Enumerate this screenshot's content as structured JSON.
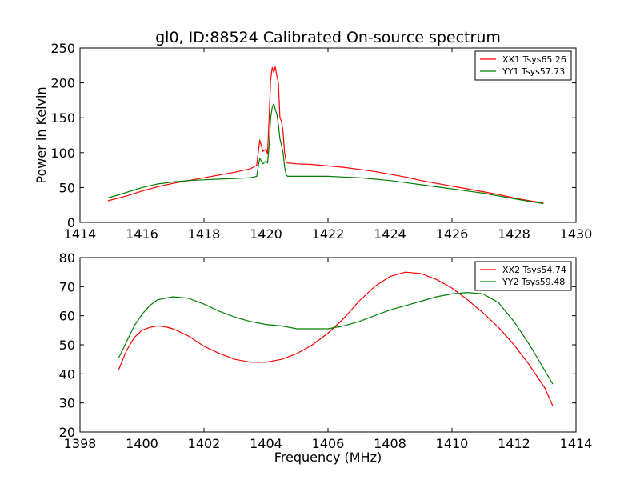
{
  "figure": {
    "title": "gl0, ID:88524 Calibrated On-source spectrum"
  },
  "chart_data": [
    {
      "type": "line",
      "title": "gl0, ID:88524 Calibrated On-source spectrum",
      "xlabel": "",
      "ylabel": "Power in Kelvin",
      "xlim": [
        1414,
        1430
      ],
      "ylim": [
        0,
        250
      ],
      "xticks": [
        "1414",
        "1416",
        "1418",
        "1420",
        "1422",
        "1424",
        "1426",
        "1428",
        "1430"
      ],
      "yticks": [
        "0",
        "50",
        "100",
        "150",
        "200",
        "250"
      ],
      "grid": false,
      "legend_position": "top-right",
      "series": [
        {
          "name": "XX1 Tsys65.26",
          "color": "#ff0000",
          "x": [
            1414.9,
            1415.5,
            1416.0,
            1416.5,
            1417.0,
            1417.5,
            1418.0,
            1418.5,
            1419.0,
            1419.5,
            1419.7,
            1419.75,
            1419.8,
            1419.9,
            1420.0,
            1420.05,
            1420.1,
            1420.15,
            1420.2,
            1420.25,
            1420.3,
            1420.35,
            1420.4,
            1420.45,
            1420.5,
            1420.55,
            1420.6,
            1420.65,
            1420.7,
            1420.75,
            1421.0,
            1421.5,
            1422.0,
            1422.5,
            1423.0,
            1423.5,
            1424.0,
            1424.5,
            1425.0,
            1425.5,
            1426.0,
            1426.5,
            1427.0,
            1427.5,
            1428.0,
            1428.5,
            1428.95
          ],
          "y": [
            31,
            38,
            45,
            51,
            56,
            60,
            64,
            68,
            72,
            77,
            82,
            100,
            118,
            102,
            105,
            98,
            150,
            205,
            222,
            215,
            223,
            210,
            200,
            150,
            145,
            130,
            100,
            87,
            85,
            85,
            84,
            83,
            81,
            79,
            76,
            73,
            69,
            65,
            60,
            56,
            52,
            48,
            44,
            40,
            35,
            31,
            28
          ]
        },
        {
          "name": "YY1 Tsys57.73",
          "color": "#008000",
          "x": [
            1414.9,
            1415.5,
            1416.0,
            1416.5,
            1417.0,
            1417.5,
            1418.0,
            1418.5,
            1419.0,
            1419.5,
            1419.7,
            1419.75,
            1419.8,
            1419.9,
            1420.0,
            1420.05,
            1420.1,
            1420.15,
            1420.2,
            1420.25,
            1420.3,
            1420.35,
            1420.4,
            1420.45,
            1420.5,
            1420.55,
            1420.6,
            1420.65,
            1420.7,
            1420.75,
            1421.0,
            1421.5,
            1422.0,
            1422.5,
            1423.0,
            1423.5,
            1424.0,
            1424.5,
            1425.0,
            1425.5,
            1426.0,
            1426.5,
            1427.0,
            1427.5,
            1428.0,
            1428.5,
            1428.95
          ],
          "y": [
            35,
            43,
            50,
            55,
            58,
            60,
            61,
            62,
            63,
            64,
            66,
            80,
            92,
            84,
            88,
            85,
            110,
            150,
            165,
            170,
            162,
            155,
            140,
            120,
            110,
            100,
            80,
            68,
            66,
            66,
            66,
            66,
            66,
            65,
            64,
            62,
            60,
            57,
            54,
            51,
            48,
            45,
            42,
            38,
            34,
            30,
            27
          ]
        }
      ]
    },
    {
      "type": "line",
      "title": "",
      "xlabel": "Frequency (MHz)",
      "ylabel": "",
      "xlim": [
        1398,
        1414
      ],
      "ylim": [
        20,
        80
      ],
      "xticks": [
        "1398",
        "1400",
        "1402",
        "1404",
        "1406",
        "1408",
        "1410",
        "1412",
        "1414"
      ],
      "yticks": [
        "20",
        "30",
        "40",
        "50",
        "60",
        "70",
        "80"
      ],
      "grid": false,
      "legend_position": "top-right",
      "series": [
        {
          "name": "XX2 Tsys54.74",
          "color": "#ff0000",
          "x": [
            1399.25,
            1399.5,
            1399.75,
            1400.0,
            1400.25,
            1400.5,
            1400.75,
            1401.0,
            1401.5,
            1402.0,
            1402.5,
            1403.0,
            1403.5,
            1404.0,
            1404.5,
            1405.0,
            1405.5,
            1406.0,
            1406.5,
            1407.0,
            1407.5,
            1408.0,
            1408.5,
            1409.0,
            1409.5,
            1410.0,
            1410.5,
            1411.0,
            1411.5,
            1412.0,
            1412.5,
            1413.0,
            1413.25
          ],
          "y": [
            41.5,
            48,
            52.5,
            55,
            56,
            56.5,
            56.2,
            55.5,
            53,
            49.5,
            47,
            45,
            44,
            44,
            45,
            47,
            50,
            54,
            59,
            65,
            70,
            73.5,
            75,
            74.5,
            72.5,
            69.5,
            65.5,
            61,
            56,
            50,
            43,
            35,
            29
          ]
        },
        {
          "name": "YY2 Tsys59.48",
          "color": "#008000",
          "x": [
            1399.25,
            1399.5,
            1399.75,
            1400.0,
            1400.25,
            1400.5,
            1400.75,
            1401.0,
            1401.5,
            1402.0,
            1402.5,
            1403.0,
            1403.5,
            1404.0,
            1404.5,
            1405.0,
            1405.5,
            1406.0,
            1406.5,
            1407.0,
            1407.5,
            1408.0,
            1408.5,
            1409.0,
            1409.5,
            1410.0,
            1410.5,
            1411.0,
            1411.5,
            1412.0,
            1412.5,
            1413.0,
            1413.25
          ],
          "y": [
            45.5,
            51,
            56.5,
            60.5,
            63.5,
            65.5,
            66,
            66.5,
            66,
            64,
            61.5,
            59.5,
            58,
            57,
            56.5,
            55.5,
            55.5,
            55.5,
            56.5,
            58,
            60,
            62,
            63.5,
            65,
            66.5,
            67.5,
            68,
            67.5,
            64.5,
            58,
            50,
            41,
            36.5
          ]
        }
      ]
    }
  ]
}
